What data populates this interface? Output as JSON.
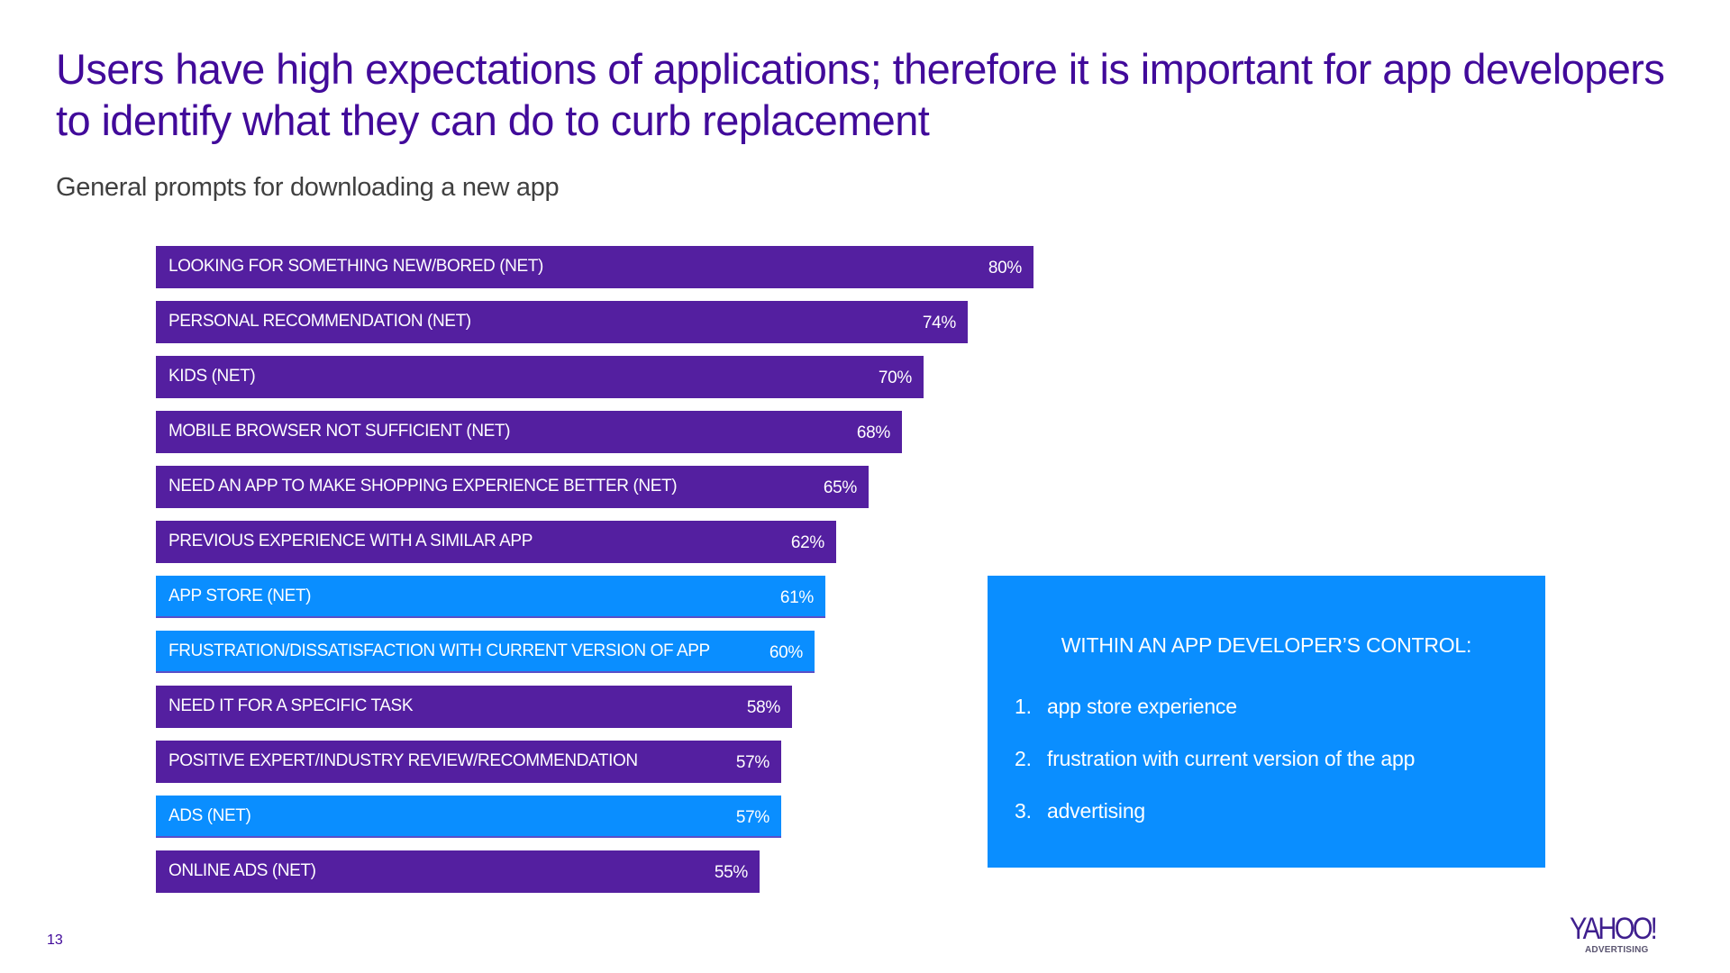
{
  "slide": {
    "title": "Users have high expectations of applications; therefore it is important for app developers to identify what they can do to curb replacement",
    "subtitle": "General prompts for downloading a new app",
    "page_number": "13"
  },
  "colors": {
    "title": "#410A9A",
    "purple_bar": "#541FA0",
    "blue_bar": "#0A8EFF",
    "callout_bg": "#0A8EFF"
  },
  "chart_data": {
    "type": "bar",
    "orientation": "horizontal",
    "title": "General prompts for downloading a new app",
    "xlabel": "",
    "ylabel": "",
    "xlim": [
      0,
      80
    ],
    "grid": false,
    "value_format": "percent",
    "categories": [
      "LOOKING FOR SOMETHING NEW/BORED (NET)",
      "PERSONAL RECOMMENDATION (NET)",
      "KIDS (NET)",
      "MOBILE BROWSER NOT SUFFICIENT (NET)",
      "NEED AN APP TO MAKE SHOPPING EXPERIENCE BETTER (NET)",
      "PREVIOUS EXPERIENCE WITH A SIMILAR APP",
      "APP STORE (NET)",
      "FRUSTRATION/DISSATISFACTION WITH CURRENT VERSION OF APP",
      "NEED IT FOR A SPECIFIC TASK",
      "POSITIVE EXPERT/INDUSTRY REVIEW/RECOMMENDATION",
      "ADS (NET)",
      "ONLINE ADS (NET)"
    ],
    "values": [
      80,
      74,
      70,
      68,
      65,
      62,
      61,
      60,
      58,
      57,
      57,
      55
    ],
    "value_labels": [
      "80%",
      "74%",
      "70%",
      "68%",
      "65%",
      "62%",
      "61%",
      "60%",
      "58%",
      "57%",
      "57%",
      "55%"
    ],
    "highlight": [
      false,
      false,
      false,
      false,
      false,
      false,
      true,
      true,
      false,
      false,
      true,
      false
    ],
    "highlight_meaning": "blue = within an app developer's control"
  },
  "callout": {
    "heading": "WITHIN AN APP DEVELOPER’S CONTROL:",
    "items": [
      {
        "num": "1.",
        "text": "app store experience"
      },
      {
        "num": "2.",
        "text": "frustration with current version of the app"
      },
      {
        "num": "3.",
        "text": "advertising"
      }
    ]
  },
  "logo": {
    "wordmark": "YAHOO!",
    "sub": "ADVERTISING"
  }
}
